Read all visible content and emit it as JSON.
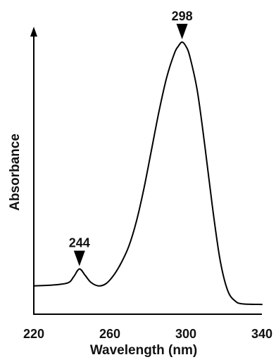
{
  "chart_data": {
    "type": "line",
    "title": "",
    "xlabel": "Wavelength (nm)",
    "ylabel": "Absorbance",
    "xlim": [
      220,
      340
    ],
    "ylim": [
      0,
      1
    ],
    "x_ticks": [
      "220",
      "260",
      "300",
      "340"
    ],
    "y_ticks": [],
    "grid": false,
    "legend": "none",
    "series": [
      {
        "x": [
          220,
          230,
          238,
          241,
          244,
          247,
          250,
          254,
          258,
          262,
          266,
          270,
          274,
          278,
          282,
          286,
          290,
          294,
          296,
          298,
          300,
          302,
          306,
          310,
          314,
          318,
          322,
          326,
          330,
          340
        ],
        "y": [
          0.097,
          0.1,
          0.108,
          0.13,
          0.158,
          0.135,
          0.11,
          0.097,
          0.105,
          0.135,
          0.18,
          0.24,
          0.33,
          0.45,
          0.59,
          0.73,
          0.85,
          0.935,
          0.96,
          0.975,
          0.96,
          0.925,
          0.8,
          0.6,
          0.38,
          0.19,
          0.08,
          0.042,
          0.032,
          0.03
        ]
      }
    ],
    "annotations": [
      {
        "label": "298",
        "x": 298,
        "y": 0.975,
        "marker": "down-triangle"
      },
      {
        "label": "244",
        "x": 244,
        "y": 0.158,
        "marker": "down-triangle"
      }
    ],
    "colors": {
      "line": "#000000",
      "text": "#111111"
    }
  }
}
